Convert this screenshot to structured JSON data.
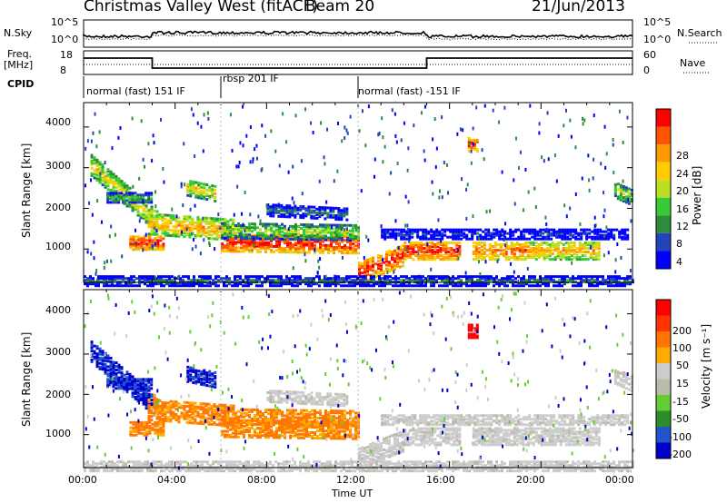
{
  "header": {
    "station": "Christmas Valley West (fitACF)",
    "beam": "Beam 20",
    "date": "21/Jun/2013"
  },
  "noise_panel": {
    "left_label": "N.Sky",
    "right_label": "N.Search",
    "y_ticks_left": [
      "10^5",
      "10^0"
    ],
    "y_ticks_right": [
      "10^5",
      "10^0"
    ]
  },
  "freq_panel": {
    "left_label_top": "Freq.",
    "left_label_bottom": "[MHz]",
    "right_label": "Nave",
    "y_ticks_left": [
      "18",
      "8"
    ],
    "y_ticks_right": [
      "60",
      "0"
    ]
  },
  "cpid": {
    "label": "CPID",
    "segments": [
      "normal (fast) 151 IF",
      "rbsp 201 IF",
      "normal (fast) -151 IF"
    ]
  },
  "power_panel": {
    "ylabel": "Slant Range [km]",
    "y_ticks": [
      "4000",
      "3000",
      "2000",
      "1000"
    ],
    "colorbar_label": "Power [dB]",
    "colorbar_ticks": [
      "28",
      "24",
      "20",
      "16",
      "12",
      "8",
      "4"
    ],
    "colors": [
      "#0000ff",
      "#2244bb",
      "#2d8c3c",
      "#33cc33",
      "#bbdd22",
      "#ffcc00",
      "#ff9900",
      "#ff5500",
      "#ff0000"
    ]
  },
  "velocity_panel": {
    "ylabel": "Slant Range [km]",
    "y_ticks": [
      "4000",
      "3000",
      "2000",
      "1000"
    ],
    "colorbar_label": "Velocity [m s⁻¹]",
    "colorbar_ticks": [
      "200",
      "100",
      "50",
      "15",
      "-15",
      "-50",
      "-100",
      "-200"
    ],
    "colors": [
      "#0000cc",
      "#2255cc",
      "#2a8f2a",
      "#66cc33",
      "#bbbbaa",
      "#cccccc",
      "#ffaa00",
      "#ff7700",
      "#ff3300",
      "#ff0000"
    ]
  },
  "x_axis": {
    "ticks": [
      "00:00",
      "04:00",
      "08:00",
      "12:00",
      "16:00",
      "20:00",
      "00:00"
    ],
    "label": "Time UT"
  }
}
